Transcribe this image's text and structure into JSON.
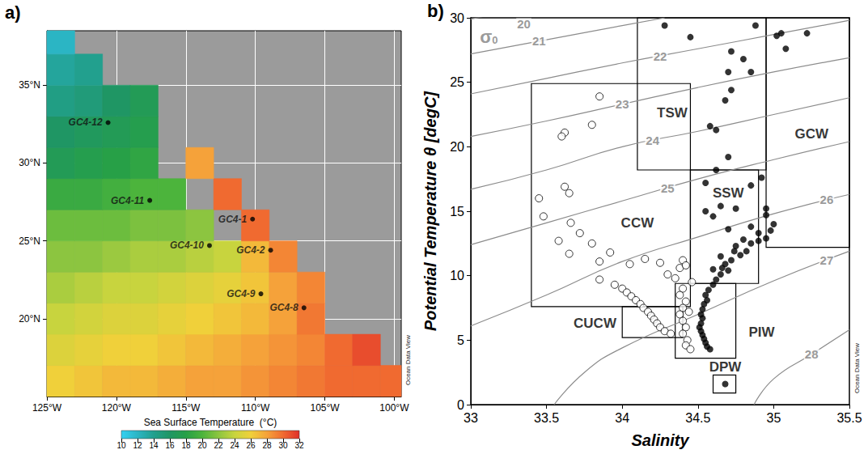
{
  "chart_data": [
    {
      "type": "map",
      "title": "a)",
      "xlim": [
        -125,
        -99.5
      ],
      "xticks": [
        {
          "value": -125,
          "label": "125°W"
        },
        {
          "value": -120,
          "label": "120°W"
        },
        {
          "value": -115,
          "label": "115°W"
        },
        {
          "value": -110,
          "label": "110°W"
        },
        {
          "value": -105,
          "label": "105°W"
        },
        {
          "value": -100,
          "label": "100°W"
        }
      ],
      "ylim": [
        15,
        38.5
      ],
      "yticks": [
        {
          "value": 20,
          "label": "20°N"
        },
        {
          "value": 25,
          "label": "25°N"
        },
        {
          "value": 30,
          "label": "30°N"
        },
        {
          "value": 35,
          "label": "35°N"
        }
      ],
      "grid": true,
      "stations": {
        "marker": "circle",
        "color": "#000000",
        "names": [
          "GC4-12",
          "GC4-11",
          "GC4-10",
          "GC4-1",
          "GC4-2",
          "GC4-9",
          "GC4-8"
        ],
        "lon": [
          -120.6,
          -117.6,
          -113.3,
          -110.2,
          -108.9,
          -109.6,
          -106.5
        ],
        "lat": [
          32.6,
          27.6,
          24.7,
          26.4,
          24.4,
          21.6,
          20.7
        ]
      },
      "sst": {
        "lon": [
          -124,
          -122,
          -120,
          -118,
          -116,
          -114,
          -112,
          -110,
          -108,
          -106,
          -104,
          -102,
          -100
        ],
        "lat": [
          16,
          18,
          20,
          22,
          24,
          26,
          28,
          30,
          32,
          34,
          36,
          38
        ],
        "values": [
          [
            26,
            26.5,
            27,
            27,
            27.5,
            28,
            28,
            28.5,
            29,
            29.5,
            30,
            30,
            30
          ],
          [
            25,
            25.5,
            26,
            26,
            26.5,
            27,
            27.5,
            28,
            28.5,
            29,
            30,
            31,
            null
          ],
          [
            24,
            24.5,
            25,
            25,
            25.5,
            26,
            26.5,
            27,
            28,
            29.5,
            null,
            null,
            null
          ],
          [
            23,
            23.5,
            24,
            24,
            24.5,
            25,
            25.5,
            26.5,
            28,
            29,
            null,
            null,
            null
          ],
          [
            22,
            22,
            22.5,
            23,
            23,
            23.5,
            24,
            27,
            29,
            null,
            null,
            null,
            null
          ],
          [
            21,
            21,
            21,
            21.5,
            21.5,
            22,
            null,
            30,
            null,
            null,
            null,
            null,
            null
          ],
          [
            19,
            19,
            19.5,
            20,
            20,
            null,
            30,
            null,
            null,
            null,
            null,
            null,
            null
          ],
          [
            17,
            17.5,
            18,
            18.5,
            null,
            28,
            null,
            null,
            null,
            null,
            null,
            null,
            null
          ],
          [
            16,
            16.5,
            17,
            17.5,
            null,
            null,
            null,
            null,
            null,
            null,
            null,
            null,
            null
          ],
          [
            14.5,
            15,
            16,
            17,
            null,
            null,
            null,
            null,
            null,
            null,
            null,
            null,
            null
          ],
          [
            13.5,
            14,
            null,
            null,
            null,
            null,
            null,
            null,
            null,
            null,
            null,
            null,
            null
          ],
          [
            12,
            null,
            null,
            null,
            null,
            null,
            null,
            null,
            null,
            null,
            null,
            null,
            null
          ]
        ]
      },
      "colorbar": {
        "label": "Sea Surface Temperature  (°C)",
        "range": [
          10,
          32
        ],
        "ticks": [
          10,
          12,
          14,
          16,
          18,
          20,
          22,
          24,
          26,
          28,
          30,
          32
        ]
      },
      "annotations": [
        "Ocean Data View"
      ]
    },
    {
      "type": "scatter",
      "title": "b)",
      "xlabel": "Salinity",
      "ylabel": "Potential Temperature θ [degC]",
      "xlim": [
        33,
        35.5
      ],
      "xticks": [
        33,
        33.5,
        34,
        34.5,
        35,
        35.5
      ],
      "ylim": [
        0,
        30
      ],
      "yticks": [
        0,
        5,
        10,
        15,
        20,
        25,
        30
      ],
      "grid": false,
      "series": [
        {
          "marker": "open_circle",
          "color": "#000000",
          "x": [
            33.85,
            33.62,
            33.6,
            33.8,
            33.45,
            33.48,
            33.58,
            33.62,
            33.65,
            33.65,
            33.66,
            33.72,
            33.8,
            33.85,
            33.92,
            33.85,
            33.95,
            34.0,
            34.03,
            34.06,
            34.09,
            34.12,
            34.14,
            34.17,
            34.19,
            34.21,
            34.23,
            34.25,
            34.28,
            34.32,
            34.05,
            34.15,
            34.25,
            34.3,
            34.35,
            34.38,
            34.4,
            34.42,
            34.4,
            34.38,
            34.42,
            34.4,
            34.38,
            34.4,
            34.42,
            34.4,
            34.43,
            34.42,
            34.45,
            34.46,
            34.44
          ],
          "y": [
            23.9,
            21.1,
            20.8,
            21.7,
            16.0,
            14.6,
            12.7,
            16.9,
            16.4,
            11.7,
            14.1,
            13.3,
            12.5,
            11.1,
            11.8,
            9.7,
            9.3,
            9.0,
            8.7,
            8.4,
            8.1,
            7.8,
            7.5,
            7.2,
            6.9,
            6.6,
            6.3,
            6.0,
            5.7,
            5.5,
            10.9,
            11.3,
            11.0,
            10.1,
            9.8,
            10.6,
            11.2,
            10.8,
            9.0,
            8.5,
            8.0,
            7.5,
            7.0,
            6.5,
            6.0,
            5.5,
            5.0,
            4.6,
            4.3,
            9.5,
            7.2
          ]
        },
        {
          "marker": "circle",
          "color": "#000000",
          "x": [
            34.28,
            34.45,
            34.88,
            35.02,
            35.05,
            35.22,
            35.08,
            34.72,
            34.8,
            34.85,
            34.7,
            34.72,
            34.68,
            34.62,
            34.58,
            34.7,
            34.62,
            34.92,
            34.55,
            34.85,
            34.55,
            34.65,
            34.75,
            34.95,
            34.95,
            34.6,
            34.7,
            34.85,
            34.9,
            35.0,
            34.8,
            34.75,
            34.85,
            34.9,
            34.95,
            34.82,
            34.78,
            34.72,
            34.68,
            34.7,
            34.65,
            34.62,
            34.6,
            34.57,
            34.55,
            34.56,
            34.54,
            34.53,
            34.52,
            34.53,
            34.52,
            34.51,
            34.52,
            34.53,
            34.54,
            34.55,
            34.56,
            34.58,
            34.66,
            34.74,
            34.65,
            34.6,
            34.98,
            34.68
          ],
          "y": [
            29.4,
            28.5,
            29.4,
            28.6,
            28.8,
            28.8,
            27.6,
            27.4,
            26.8,
            25.8,
            25.8,
            24.4,
            23.6,
            21.3,
            21.6,
            19.2,
            18.2,
            17.6,
            17.2,
            17.0,
            15.0,
            15.4,
            15.2,
            15.2,
            14.7,
            14.6,
            13.6,
            13.8,
            13.3,
            14.0,
            12.8,
            12.3,
            12.5,
            12.7,
            12.9,
            11.9,
            11.6,
            11.2,
            10.9,
            10.4,
            10.1,
            9.7,
            9.3,
            8.9,
            8.5,
            8.1,
            7.8,
            7.4,
            7.0,
            6.7,
            6.3,
            6.0,
            5.7,
            5.4,
            5.1,
            4.8,
            4.5,
            4.3,
            10.6,
            11.9,
            11.5,
            10.5,
            13.5,
            1.6
          ]
        }
      ],
      "water_masses": [
        {
          "label": "TSW",
          "salinity": [
            34.1,
            34.95
          ],
          "temperature": [
            18.2,
            30
          ],
          "label_at": [
            34.33,
            22.6
          ]
        },
        {
          "label": "GCW",
          "salinity": [
            34.95,
            35.5
          ],
          "temperature": [
            12.2,
            30
          ],
          "label_at": [
            35.25,
            21.0
          ]
        },
        {
          "label": "SSW",
          "salinity": [
            34.45,
            34.9
          ],
          "temperature": [
            9.4,
            18.2
          ],
          "label_at": [
            34.7,
            16.4
          ]
        },
        {
          "label": "CCW",
          "salinity": [
            33.4,
            34.45
          ],
          "temperature": [
            7.6,
            24.9
          ],
          "label_at": [
            34.1,
            14.1
          ]
        },
        {
          "label": "CUCW",
          "salinity": [
            34.0,
            34.4
          ],
          "temperature": [
            5.2,
            7.6
          ],
          "label_at": [
            33.82,
            6.3
          ]
        },
        {
          "label": "PIW",
          "salinity": [
            34.35,
            34.75
          ],
          "temperature": [
            3.6,
            9.4
          ],
          "label_at": [
            34.92,
            5.6
          ]
        },
        {
          "label": "DPW",
          "salinity": [
            34.6,
            34.75
          ],
          "temperature": [
            0.9,
            2.3
          ],
          "label_at": [
            34.68,
            2.9
          ]
        }
      ],
      "isopycnals": {
        "label": "σ0",
        "label_at": [
          33.12,
          28.5
        ],
        "lines": [
          {
            "label": "20",
            "label_at": [
              33.35,
              29.5
            ],
            "points": [
              [
                33,
                29.9
              ],
              [
                33.12,
                30.2
              ]
            ]
          },
          {
            "label": "21",
            "label_at": [
              33.45,
              28.2
            ],
            "points": [
              [
                33,
                27.2
              ],
              [
                33.5,
                28.3
              ],
              [
                34,
                29.4
              ],
              [
                34.28,
                30
              ]
            ]
          },
          {
            "label": "22",
            "label_at": [
              34.25,
              27.05
            ],
            "points": [
              [
                33,
                24.1
              ],
              [
                33.5,
                25.3
              ],
              [
                34,
                26.5
              ],
              [
                34.5,
                27.6
              ],
              [
                35,
                28.7
              ],
              [
                35.5,
                29.8
              ]
            ]
          },
          {
            "label": "23",
            "label_at": [
              34.0,
              23.3
            ],
            "points": [
              [
                33,
                20.8
              ],
              [
                33.5,
                22
              ],
              [
                34,
                23.3
              ],
              [
                34.5,
                24.6
              ],
              [
                35,
                25.8
              ],
              [
                35.5,
                26.9
              ]
            ]
          },
          {
            "label": "24",
            "label_at": [
              34.2,
              20.5
            ],
            "points": [
              [
                33,
                16.7
              ],
              [
                33.5,
                18.2
              ],
              [
                34,
                20
              ],
              [
                34.5,
                21.2
              ],
              [
                35,
                22.5
              ],
              [
                35.5,
                23.8
              ]
            ]
          },
          {
            "label": "25",
            "label_at": [
              34.3,
              16.8
            ],
            "points": [
              [
                33,
                12.4
              ],
              [
                33.5,
                14.1
              ],
              [
                34,
                15.8
              ],
              [
                34.5,
                17.5
              ],
              [
                35,
                19
              ],
              [
                35.5,
                20.4
              ]
            ]
          },
          {
            "label": "26",
            "label_at": [
              35.35,
              15.9
            ],
            "points": [
              [
                33,
                6.1
              ],
              [
                33.5,
                8.5
              ],
              [
                34,
                11.1
              ],
              [
                34.5,
                13
              ],
              [
                35,
                14.8
              ],
              [
                35.5,
                16.3
              ]
            ]
          },
          {
            "label": "27",
            "label_at": [
              35.35,
              11.2
            ],
            "points": [
              [
                33.55,
                0
              ],
              [
                33.75,
                2.5
              ],
              [
                34,
                4.4
              ],
              [
                34.5,
                7
              ],
              [
                35,
                9.6
              ],
              [
                35.5,
                11.9
              ]
            ]
          },
          {
            "label": "28",
            "label_at": [
              35.25,
              3.9
            ],
            "points": [
              [
                34.87,
                0
              ],
              [
                35,
                2
              ],
              [
                35.25,
                3.9
              ],
              [
                35.5,
                5.8
              ]
            ]
          }
        ]
      },
      "annotations": [
        "Ocean Data View"
      ]
    }
  ]
}
